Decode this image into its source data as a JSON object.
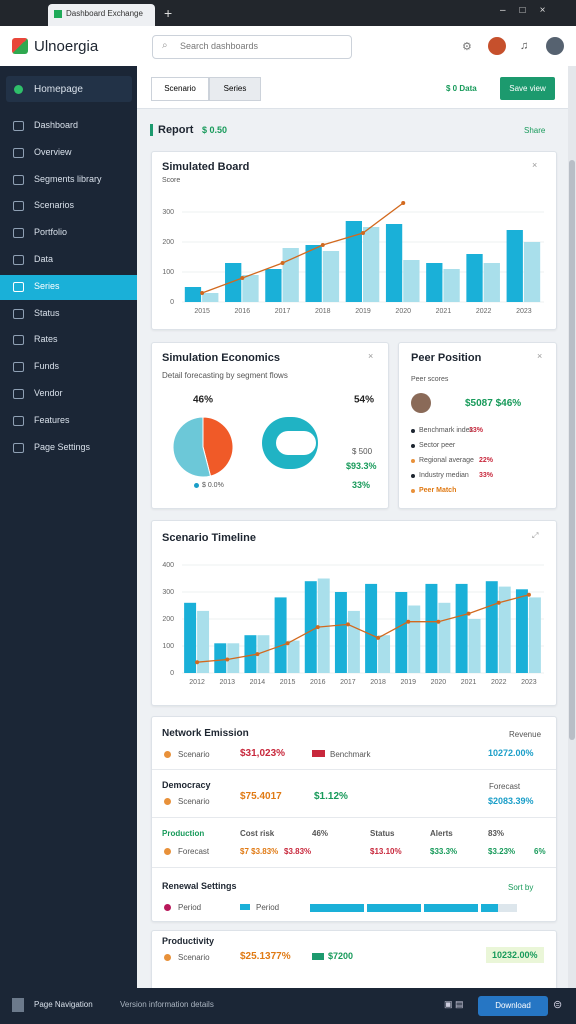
{
  "browser": {
    "tab": "Dashboard Exchange",
    "search": "Search dashboards"
  },
  "app": {
    "name": "Ulnoergia"
  },
  "sidebar": {
    "home": "Homepage",
    "items": [
      "Dashboard",
      "Overview",
      "Segments library",
      "Scenarios",
      "Portfolio",
      "Data",
      "Series",
      "Status",
      "Rates",
      "Funds",
      "Vendor",
      "Features",
      "Page Settings"
    ],
    "active": 6
  },
  "toolbar": {
    "tabs": [
      "Scenario",
      "Series"
    ],
    "status": "$ 0 Data",
    "action": "Save view"
  },
  "section": {
    "title": "Report",
    "value": "$ 0.50",
    "link": "Share"
  },
  "board": {
    "title": "Simulated Board",
    "unit": "Score",
    "categories": [
      "2015",
      "2016",
      "2017",
      "2018",
      "2019",
      "2020",
      "2021",
      "2022",
      "2023"
    ],
    "ylim": [
      0,
      350
    ],
    "yticks": [
      0,
      100,
      200,
      300
    ],
    "series": [
      {
        "color": "#1ab0d8",
        "values": [
          50,
          130,
          110,
          190,
          270,
          260,
          130,
          160,
          240
        ]
      },
      {
        "color": "#a9dfeb",
        "values": [
          30,
          90,
          180,
          170,
          250,
          140,
          110,
          130,
          200
        ]
      }
    ],
    "line": {
      "color": "#d2691e",
      "values": [
        30,
        80,
        130,
        190,
        230,
        330,
        null,
        null,
        null
      ]
    }
  },
  "economics": {
    "title": "Simulation Economics",
    "subtitle": "Detail forecasting by segment flows",
    "pie": {
      "values": [
        46,
        54
      ],
      "value_labels": [
        "46%",
        "54%"
      ],
      "colors": [
        "#f05a28",
        "#6cc8d8"
      ]
    },
    "legend": "$ 0.0%",
    "metrics": [
      "$ 500",
      "$93.3%",
      "33%"
    ]
  },
  "peer": {
    "title": "Peer Position",
    "subtitle": "Peer scores",
    "score": "$5087 $46%",
    "items": [
      {
        "label": "Benchmark index",
        "value": "33%"
      },
      {
        "label": "Sector peer"
      },
      {
        "label": "Regional average",
        "value": "22%"
      },
      {
        "label": "Industry median",
        "value": "33%"
      },
      {
        "label": "Peer Match"
      }
    ]
  },
  "timeline": {
    "title": "Scenario Timeline",
    "categories": [
      "2012",
      "2013",
      "2014",
      "2015",
      "2016",
      "2017",
      "2018",
      "2019",
      "2020",
      "2021",
      "2022",
      "2023"
    ],
    "ylim": [
      0,
      400
    ],
    "yticks": [
      0,
      100,
      200,
      300,
      400
    ],
    "series": [
      {
        "color": "#1ab0d8",
        "values": [
          260,
          110,
          140,
          280,
          340,
          300,
          330,
          300,
          330,
          330,
          340,
          310
        ]
      },
      {
        "color": "#a9dfeb",
        "values": [
          230,
          110,
          140,
          120,
          350,
          230,
          140,
          250,
          260,
          200,
          320,
          280
        ]
      }
    ],
    "line": {
      "color": "#d2691e",
      "values": [
        40,
        50,
        70,
        110,
        170,
        180,
        130,
        190,
        190,
        220,
        260,
        290
      ]
    }
  },
  "report": {
    "title": "Network Emission",
    "head_right": "Revenue",
    "r1": {
      "label": "Scenario",
      "value": "$31,023%",
      "tag": "Benchmark",
      "right": "10272.00%"
    },
    "r2": {
      "title": "Democracy",
      "a": "$75.4017",
      "b": "$1.12%",
      "right_head": "Forecast",
      "right": "$2083.39%",
      "label": "Scenario"
    },
    "r3": {
      "head": [
        "Production",
        "Cost risk",
        "46%",
        "Status",
        "Alerts",
        "83%"
      ],
      "cells": [
        "Forecast",
        "$7 $3.83%",
        "$3.83%",
        "$13.10%",
        "$33.3%",
        "$3.23%",
        "6%"
      ]
    },
    "r4": {
      "title": "Renewal Settings",
      "sort": "Sort by",
      "a": "Period",
      "b": "Period"
    }
  },
  "productivity": {
    "title": "Productivity",
    "label": "Scenario",
    "a": "$25.1377%",
    "b": "$7200",
    "right": "10232.00%"
  },
  "footer": {
    "nav": "Page Navigation",
    "info": "Version information details",
    "button": "Download"
  }
}
